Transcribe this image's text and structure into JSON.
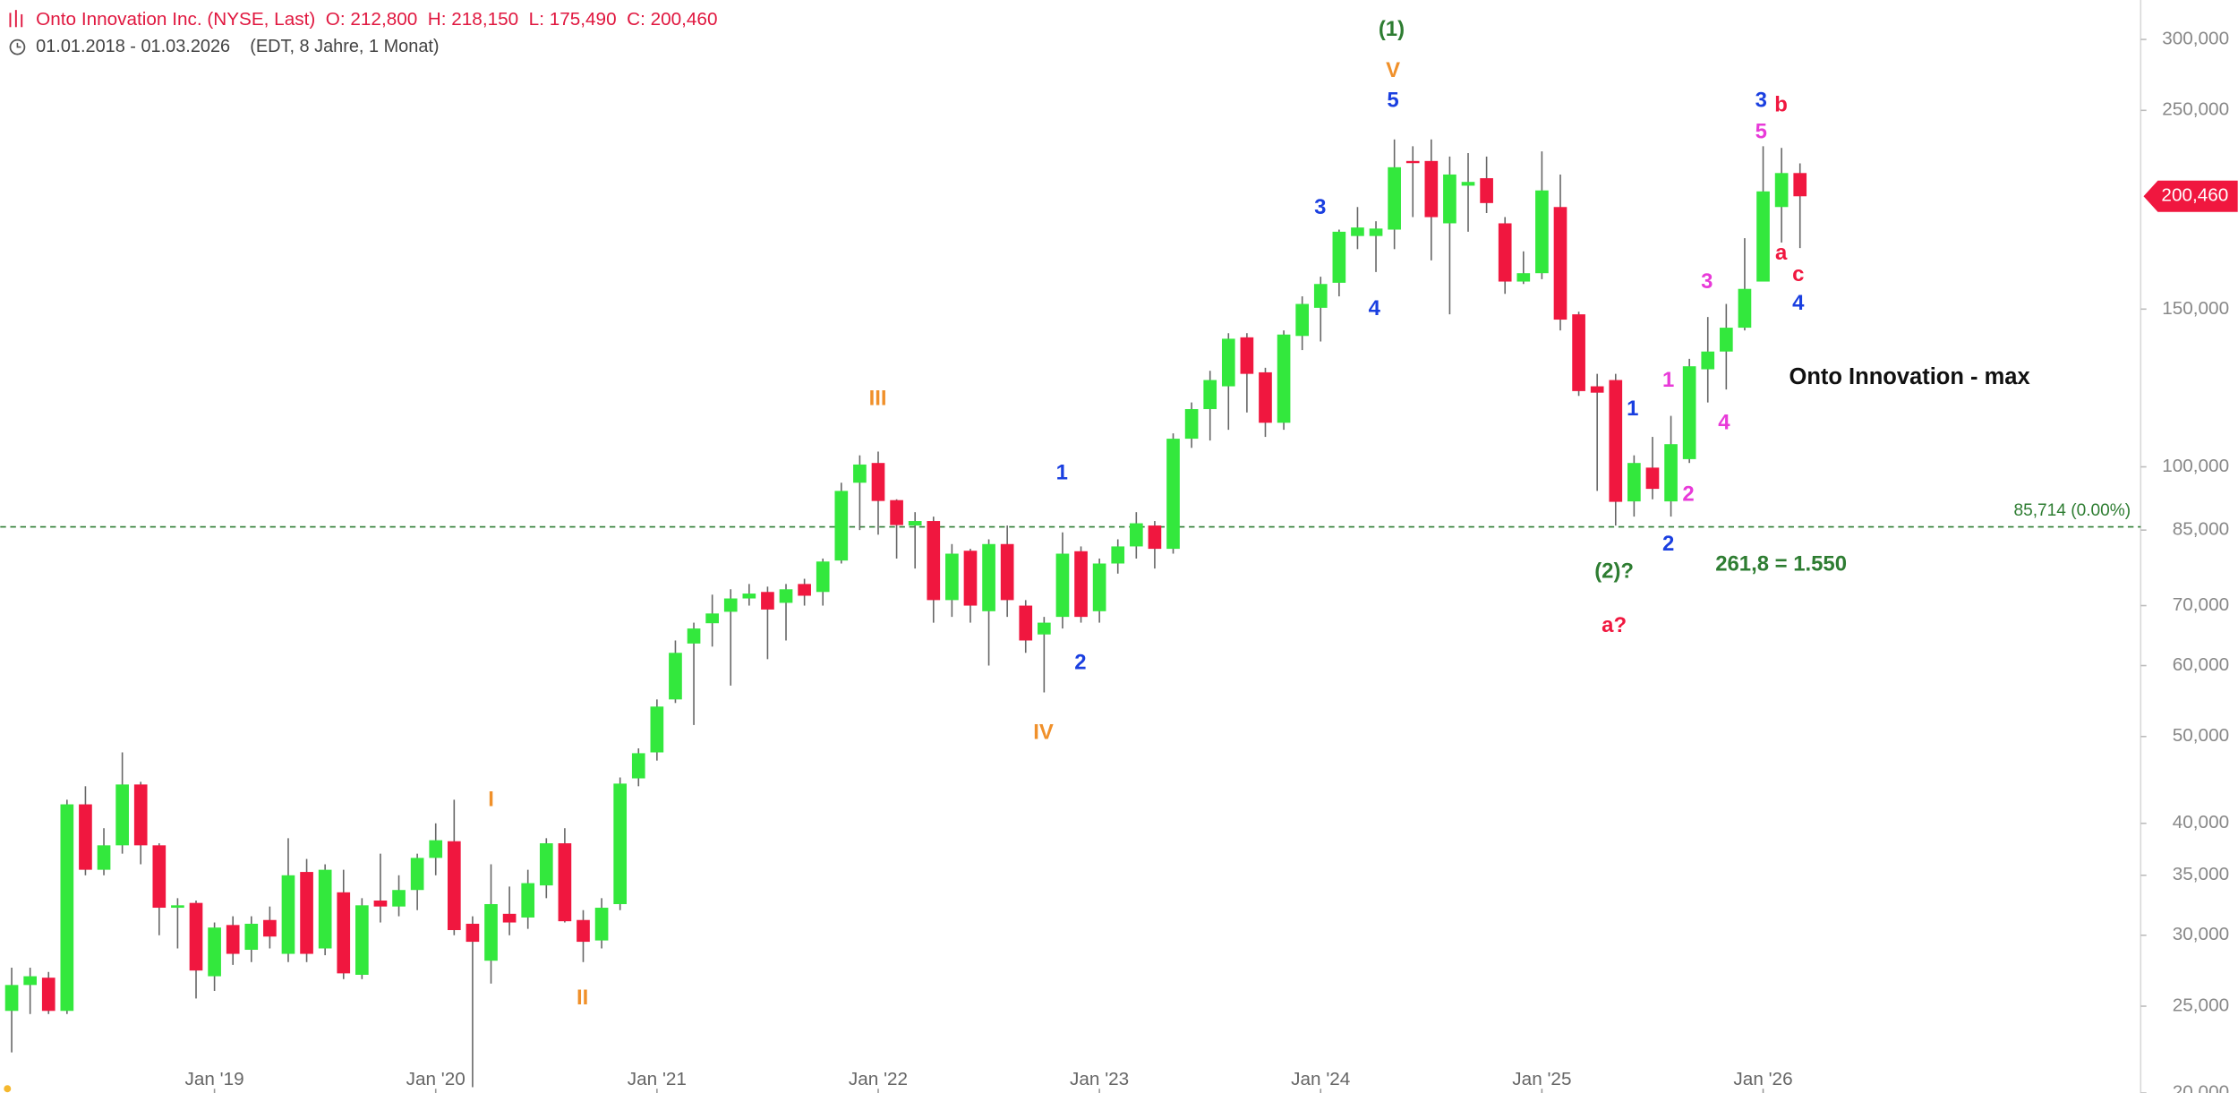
{
  "header": {
    "instrument": "Onto Innovation Inc. (NYSE, Last)  O: 212,800  H: 218,150  L: 175,490  C: 200,460",
    "range": "01.01.2018 - 01.03.2026",
    "period": "(EDT, 8 Jahre, 1 Monat)"
  },
  "chart_data": {
    "type": "candlestick",
    "categories": [
      null,
      null,
      null,
      null,
      null,
      null,
      null,
      null,
      null,
      null,
      null,
      "Jan '19",
      null,
      null,
      null,
      null,
      null,
      null,
      null,
      null,
      null,
      null,
      null,
      "Jan '20",
      null,
      null,
      null,
      null,
      null,
      null,
      null,
      null,
      null,
      null,
      null,
      "Jan '21",
      null,
      null,
      null,
      null,
      null,
      null,
      null,
      null,
      null,
      null,
      null,
      "Jan '22",
      null,
      null,
      null,
      null,
      null,
      null,
      null,
      null,
      null,
      null,
      null,
      "Jan '23",
      null,
      null,
      null,
      null,
      null,
      null,
      null,
      null,
      null,
      null,
      null,
      "Jan '24",
      null,
      null,
      null,
      null,
      null,
      null,
      null,
      null,
      null,
      null,
      null,
      "Jan '25",
      null,
      null,
      null,
      null,
      null,
      null,
      null,
      null,
      null,
      null,
      null,
      "Jan '26",
      null,
      null
    ],
    "open": [
      24.7,
      26.4,
      26.9,
      24.7,
      42,
      35.5,
      37.8,
      44.2,
      37.8,
      32.2,
      32.6,
      27,
      30.8,
      28.9,
      31.2,
      28.6,
      35.3,
      29,
      33.5,
      27.1,
      32.8,
      32.3,
      33.7,
      36.6,
      38.2,
      30.9,
      28.1,
      31.7,
      31.4,
      34.1,
      38,
      31.2,
      29.6,
      32.5,
      44.9,
      48,
      55,
      63.5,
      66.9,
      68.9,
      71.3,
      72.5,
      70.5,
      74,
      72.5,
      78.6,
      96,
      101,
      91.8,
      86,
      87,
      71,
      80.6,
      69,
      82,
      70,
      65,
      68,
      80.5,
      69,
      78,
      81.5,
      86,
      81,
      107.5,
      116,
      123,
      139.5,
      127.5,
      112,
      140,
      150.5,
      160.5,
      181,
      181,
      184,
      219.5,
      219.5,
      187,
      206,
      210,
      187,
      161,
      164.5,
      195,
      148,
      123,
      125,
      91.5,
      99.8,
      91.5,
      102,
      128.5,
      134.5,
      143,
      161,
      195,
      212.8
    ],
    "high": [
      27.6,
      27.6,
      27.3,
      42.5,
      44,
      39.5,
      48,
      44.5,
      38,
      33,
      32.8,
      31,
      31.5,
      31.5,
      32.3,
      38.5,
      36.5,
      36,
      35.5,
      33,
      37,
      35,
      37,
      40,
      42.5,
      31.5,
      36,
      34,
      35.5,
      38.5,
      39.5,
      32,
      33,
      45,
      48.5,
      55,
      64,
      67,
      72,
      73,
      74,
      73.5,
      74,
      75,
      79,
      96,
      103,
      104,
      92,
      89,
      88,
      82,
      81,
      83,
      86,
      71,
      68,
      84.5,
      81.5,
      79,
      83,
      89,
      87,
      109,
      118,
      128,
      141,
      141,
      129,
      142,
      155,
      163,
      184,
      195,
      188,
      232,
      228,
      232,
      222,
      224,
      222,
      190,
      174,
      225,
      212,
      149,
      127,
      127,
      103,
      108,
      114,
      132,
      147,
      152,
      180,
      228,
      227,
      218.15
    ],
    "low": [
      22.2,
      24.5,
      24.5,
      24.5,
      35,
      35,
      37,
      36,
      30,
      29,
      25.5,
      26,
      27.8,
      28,
      29,
      28,
      28,
      28.5,
      26.8,
      26.8,
      31,
      31.5,
      32,
      35,
      30,
      20.3,
      26.5,
      30,
      30.5,
      33,
      31,
      28,
      29,
      32,
      44,
      47,
      54.5,
      51.5,
      63,
      57,
      70,
      61,
      64,
      70,
      70,
      78,
      85,
      84,
      79,
      77,
      67,
      68,
      67,
      60,
      68,
      62,
      56,
      66,
      67,
      67,
      76,
      79,
      77,
      80,
      105,
      107,
      110,
      115,
      108,
      110,
      135,
      138,
      155,
      175,
      165,
      175,
      190,
      170,
      148,
      183,
      192,
      156,
      160,
      162,
      142,
      120,
      94,
      86,
      88,
      92,
      88,
      101,
      118,
      122,
      142,
      161,
      178,
      175.49
    ],
    "close": [
      26.4,
      27,
      24.7,
      42,
      35.5,
      37.8,
      44.2,
      37.8,
      32.2,
      32.4,
      27.4,
      30.6,
      28.6,
      30.9,
      29.9,
      35,
      28.6,
      35.5,
      27.2,
      32.4,
      32.3,
      33.7,
      36.6,
      38.3,
      30.4,
      29.5,
      32.5,
      31,
      34.3,
      38,
      31.1,
      29.5,
      32.2,
      44.3,
      47.9,
      54,
      62,
      66,
      68.6,
      71.3,
      72.2,
      69.3,
      73,
      71.8,
      78.4,
      94,
      100.6,
      91.6,
      86.1,
      87,
      71,
      80,
      70,
      82,
      71,
      64,
      67,
      80,
      68,
      78,
      81.5,
      86.5,
      81,
      107.5,
      116,
      125,
      139,
      127,
      112,
      140.5,
      152,
      160,
      183,
      185,
      184.5,
      216,
      218.5,
      190,
      212,
      208,
      197,
      161,
      164.5,
      203.5,
      146,
      121.5,
      121,
      91.4,
      101,
      94.5,
      106,
      129.5,
      134.5,
      143,
      158,
      203,
      212.8,
      200.46
    ],
    "up_color": "#33e83d",
    "down_color": "#f0173f",
    "log_scale": true,
    "ylim": [
      20,
      332
    ],
    "yticks": [
      {
        "value": 300,
        "label": "300,000"
      },
      {
        "value": 250,
        "label": "250,000"
      },
      {
        "value": 150,
        "label": "150,000"
      },
      {
        "value": 100,
        "label": "100,000"
      },
      {
        "value": 85,
        "label": "85,000"
      },
      {
        "value": 70,
        "label": "70,000"
      },
      {
        "value": 60,
        "label": "60,000"
      },
      {
        "value": 50,
        "label": "50,000"
      },
      {
        "value": 40,
        "label": "40,000"
      },
      {
        "value": 35,
        "label": "35,000"
      },
      {
        "value": 30,
        "label": "30,000"
      },
      {
        "value": 25,
        "label": "25,000"
      },
      {
        "value": 20,
        "label": "20,000"
      }
    ],
    "hline": {
      "value": 85.714,
      "label": "85,714 (0.00%)",
      "color": "#2e7d32"
    },
    "last_price": {
      "value": 200.46,
      "label": "200,460",
      "color": "#f0173f"
    },
    "annotations": [
      {
        "text": "(1)",
        "color": "#2e7d32"
      },
      {
        "text": "V",
        "color": "#f0902a"
      },
      {
        "text": "5",
        "color": "#1a3fe0"
      },
      {
        "text": "3",
        "color": "#1a3fe0"
      },
      {
        "text": "4",
        "color": "#1a3fe0"
      },
      {
        "text": "III",
        "color": "#f0902a"
      },
      {
        "text": "IV",
        "color": "#f0902a"
      },
      {
        "text": "I",
        "color": "#f0902a"
      },
      {
        "text": "II",
        "color": "#f0902a"
      },
      {
        "text": "1",
        "color": "#1a3fe0"
      },
      {
        "text": "2",
        "color": "#1a3fe0"
      },
      {
        "text": "3",
        "color": "#1a3fe0"
      },
      {
        "text": "b",
        "color": "#f0173f"
      },
      {
        "text": "5",
        "color": "#e83ad8"
      },
      {
        "text": "a",
        "color": "#f0173f"
      },
      {
        "text": "c",
        "color": "#f0173f"
      },
      {
        "text": "4",
        "color": "#1a3fe0"
      },
      {
        "text": "3",
        "color": "#e83ad8"
      },
      {
        "text": "1",
        "color": "#e83ad8"
      },
      {
        "text": "1",
        "color": "#1a3fe0"
      },
      {
        "text": "4",
        "color": "#e83ad8"
      },
      {
        "text": "2",
        "color": "#e83ad8"
      },
      {
        "text": "2",
        "color": "#1a3fe0"
      },
      {
        "text": "(2)?",
        "color": "#2e7d32"
      },
      {
        "text": "a?",
        "color": "#f0173f"
      },
      {
        "text": "261,8 = 1.550",
        "color": "#2e7d32"
      },
      {
        "text": "Onto Innovation - max",
        "color": "#111111"
      }
    ]
  }
}
